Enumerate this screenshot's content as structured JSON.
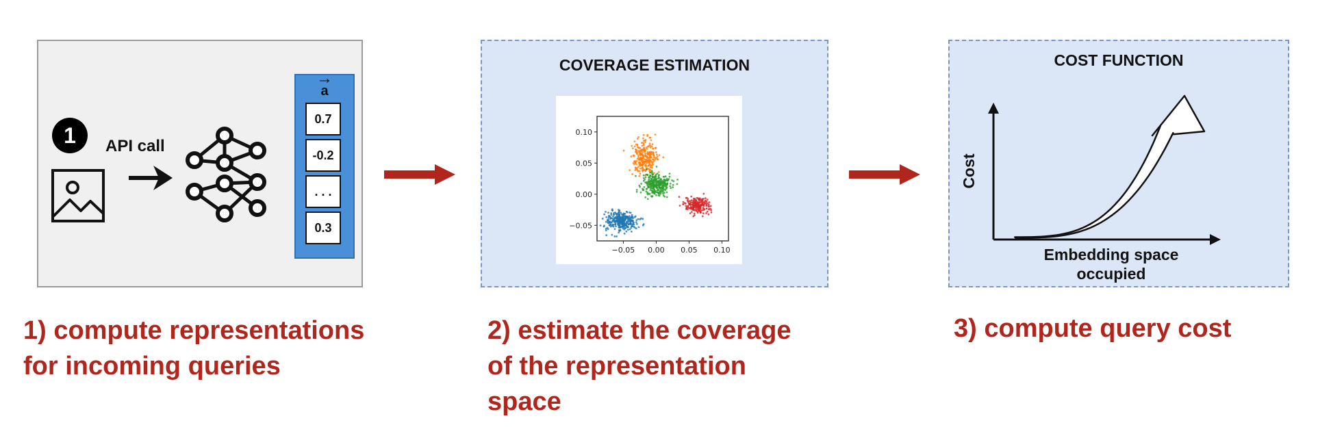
{
  "panels": {
    "step1": {
      "badge": "1",
      "api_label": "API call",
      "vector_label": "a",
      "vector_arrow": "→",
      "cells": [
        "0.7",
        "-0.2",
        ". . .",
        "0.3"
      ]
    },
    "step2": {
      "title": "COVERAGE ESTIMATION"
    },
    "step3": {
      "title": "COST FUNCTION",
      "ylabel": "Cost",
      "xlabel_lines": [
        "Embedding space",
        "occupied"
      ]
    }
  },
  "captions": {
    "step1": [
      "1) compute representations",
      "for incoming queries"
    ],
    "step2": [
      "2) estimate the coverage",
      "of the representation",
      "space"
    ],
    "step3": [
      "3) compute query cost"
    ]
  },
  "colors": {
    "caption": "#b1261c",
    "flow_arrow": "#b1261c",
    "panel_blue": "#dbe6f7",
    "vector_blue": "#4a90d9"
  },
  "chart_data": [
    {
      "type": "scatter",
      "title": "",
      "xlabel": "",
      "ylabel": "",
      "xlim": [
        -0.09,
        0.11
      ],
      "ylim": [
        -0.075,
        0.125
      ],
      "xticks": [
        "-0.05",
        "0.00",
        "0.05",
        "0.10"
      ],
      "xtick_values": [
        -0.05,
        0.0,
        0.05,
        0.1
      ],
      "yticks": [
        "-0.05",
        "0.00",
        "0.05",
        "0.10"
      ],
      "ytick_values": [
        -0.05,
        0.0,
        0.05,
        0.1
      ],
      "grid": false,
      "clusters": [
        {
          "color": "#1f77b4",
          "center": [
            -0.053,
            -0.043
          ],
          "spread": [
            0.012,
            0.008
          ],
          "count": 320
        },
        {
          "color": "#ff7f0e",
          "center": [
            -0.018,
            0.06
          ],
          "spread": [
            0.009,
            0.014
          ],
          "count": 300
        },
        {
          "color": "#2ca02c",
          "center": [
            0.0,
            0.015
          ],
          "spread": [
            0.011,
            0.01
          ],
          "count": 300
        },
        {
          "color": "#d62728",
          "center": [
            0.063,
            -0.018
          ],
          "spread": [
            0.01,
            0.006
          ],
          "count": 220
        }
      ]
    },
    {
      "type": "line",
      "title": "",
      "xlabel": "Embedding space occupied",
      "ylabel": "Cost",
      "curve": "exponential increase",
      "x": [
        0,
        0.2,
        0.4,
        0.6,
        0.8,
        1.0
      ],
      "y": [
        0,
        0.02,
        0.08,
        0.2,
        0.45,
        1.0
      ]
    }
  ]
}
